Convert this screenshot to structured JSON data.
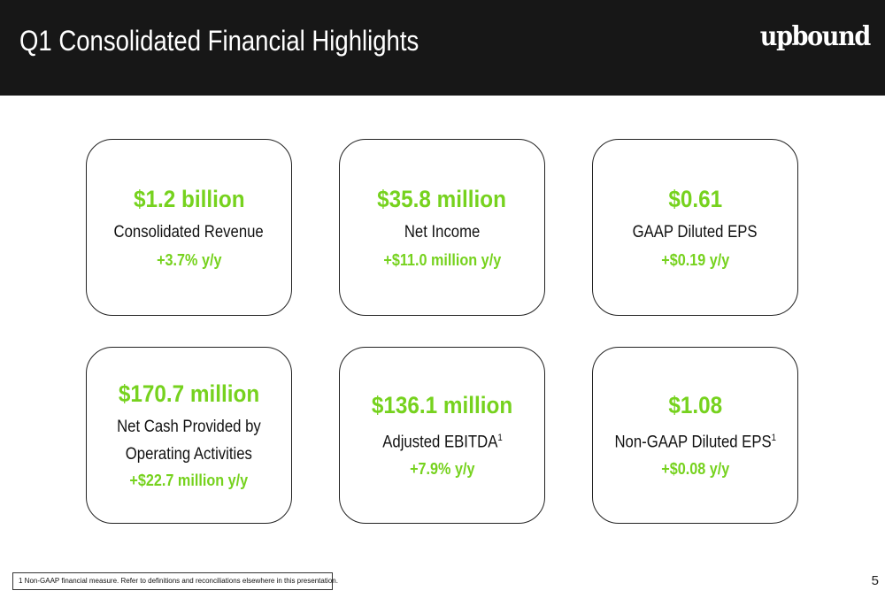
{
  "header": {
    "title": "Q1 Consolidated Financial Highlights",
    "logo": "upbound"
  },
  "colors": {
    "accent": "#76d21e",
    "header_bg": "#171717"
  },
  "cards": [
    {
      "value": "$1.2 billion",
      "label": "Consolidated Revenue",
      "change": "+3.7% y/y"
    },
    {
      "value": "$35.8 million",
      "label": "Net Income",
      "change": "+$11.0 million y/y"
    },
    {
      "value": "$0.61",
      "label": "GAAP Diluted EPS",
      "change": "+$0.19 y/y"
    },
    {
      "value": "$170.7 million",
      "label": "Net Cash Provided by",
      "label2": "Operating Activities",
      "change": "+$22.7 million y/y"
    },
    {
      "value": "$136.1 million",
      "label": "Adjusted EBITDA",
      "sup": "1",
      "change": "+7.9% y/y"
    },
    {
      "value": "$1.08",
      "label": "Non-GAAP Diluted EPS",
      "sup": "1",
      "change": "+$0.08 y/y"
    }
  ],
  "footnote": "1 Non-GAAP financial measure. Refer to definitions and reconciliations elsewhere in this presentation.",
  "page_number": "5"
}
